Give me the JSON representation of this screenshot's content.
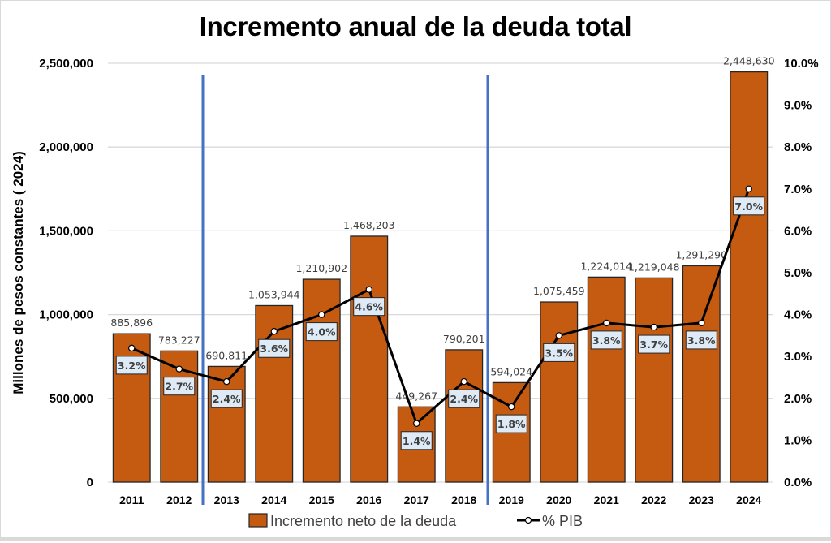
{
  "chart_data": {
    "type": "bar+line",
    "title": "Incremento anual de la deuda total",
    "xlabel": "",
    "ylabel": "Millones de pesos constantes ( 2024)",
    "y2label": "",
    "categories": [
      "2011",
      "2012",
      "2013",
      "2014",
      "2015",
      "2016",
      "2017",
      "2018",
      "2019",
      "2020",
      "2021",
      "2022",
      "2023",
      "2024"
    ],
    "series": [
      {
        "name": "Incremento neto de la deuda",
        "type": "bar",
        "axis": "left",
        "color": "#C55A11",
        "values": [
          885896,
          783227,
          690811,
          1053944,
          1210902,
          1468203,
          449267,
          790201,
          594024,
          1075459,
          1224014,
          1219048,
          1291290,
          2448630
        ],
        "labels": [
          "885,896",
          "783,227",
          "690,811",
          "1,053,944",
          "1,210,902",
          "1,468,203",
          "449,267",
          "790,201",
          "594,024",
          "1,075,459",
          "1,224,014",
          "1,219,048",
          "1,291,290",
          "2,448,630"
        ]
      },
      {
        "name": "% PIB",
        "type": "line",
        "axis": "right",
        "color": "#000000",
        "values": [
          3.2,
          2.7,
          2.4,
          3.6,
          4.0,
          4.6,
          1.4,
          2.4,
          1.8,
          3.5,
          3.8,
          3.7,
          3.8,
          7.0
        ],
        "labels": [
          "3.2%",
          "2.7%",
          "2.4%",
          "3.6%",
          "4.0%",
          "4.6%",
          "1.4%",
          "2.4%",
          "1.8%",
          "3.5%",
          "3.8%",
          "3.7%",
          "3.8%",
          "7.0%"
        ]
      }
    ],
    "ylim": [
      0,
      2500000
    ],
    "yticks": [
      0,
      500000,
      1000000,
      1500000,
      2000000,
      2500000
    ],
    "ytick_labels": [
      "0",
      "500,000",
      "1,000,000",
      "1,500,000",
      "2,000,000",
      "2,500,000"
    ],
    "y2lim": [
      0,
      10
    ],
    "y2ticks": [
      0,
      1,
      2,
      3,
      4,
      5,
      6,
      7,
      8,
      9,
      10
    ],
    "y2tick_labels": [
      "0.0%",
      "1.0%",
      "2.0%",
      "3.0%",
      "4.0%",
      "5.0%",
      "6.0%",
      "7.0%",
      "8.0%",
      "9.0%",
      "10.0%"
    ],
    "vertical_markers_after_category": [
      "2012",
      "2018"
    ],
    "marker_color": "#4472C4",
    "grid": true,
    "legend_position": "bottom"
  }
}
